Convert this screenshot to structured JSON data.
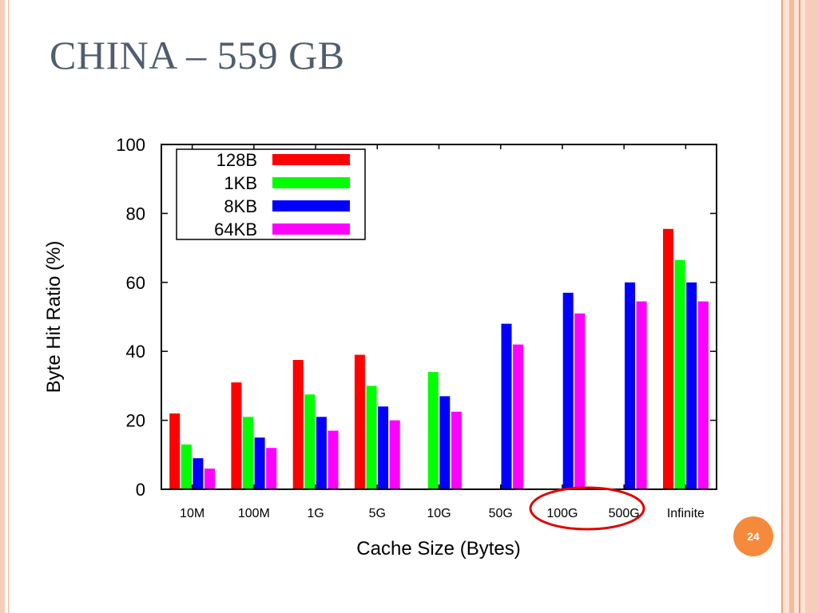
{
  "slide": {
    "title": "CHINA – 559 GB",
    "page_number": "24"
  },
  "chart_data": {
    "type": "bar",
    "categories": [
      "10M",
      "100M",
      "1G",
      "5G",
      "10G",
      "50G",
      "100G",
      "500G",
      "Infinite"
    ],
    "series": [
      {
        "name": "128B",
        "color": "#ff0000",
        "values": [
          22,
          31,
          37.5,
          39,
          null,
          null,
          null,
          null,
          75.5
        ]
      },
      {
        "name": "1KB",
        "color": "#00ff00",
        "values": [
          13,
          21,
          27.5,
          30,
          34,
          null,
          null,
          null,
          66.5
        ]
      },
      {
        "name": "8KB",
        "color": "#0000ff",
        "values": [
          9,
          15,
          21,
          24,
          27,
          48,
          57,
          60,
          60
        ]
      },
      {
        "name": "64KB",
        "color": "#ff00ff",
        "values": [
          6,
          12,
          17,
          20,
          22.5,
          42,
          51,
          54.5,
          54.5
        ]
      }
    ],
    "xlabel": "Cache Size (Bytes)",
    "ylabel": "Byte Hit Ratio (%)",
    "ylim": [
      0,
      100
    ],
    "yticks": [
      0,
      20,
      40,
      60,
      80,
      100
    ],
    "grid": false,
    "legend": "top-left",
    "annotation": {
      "type": "ellipse",
      "color": "#e00000",
      "around_categories": [
        "100G",
        "500G"
      ]
    }
  }
}
